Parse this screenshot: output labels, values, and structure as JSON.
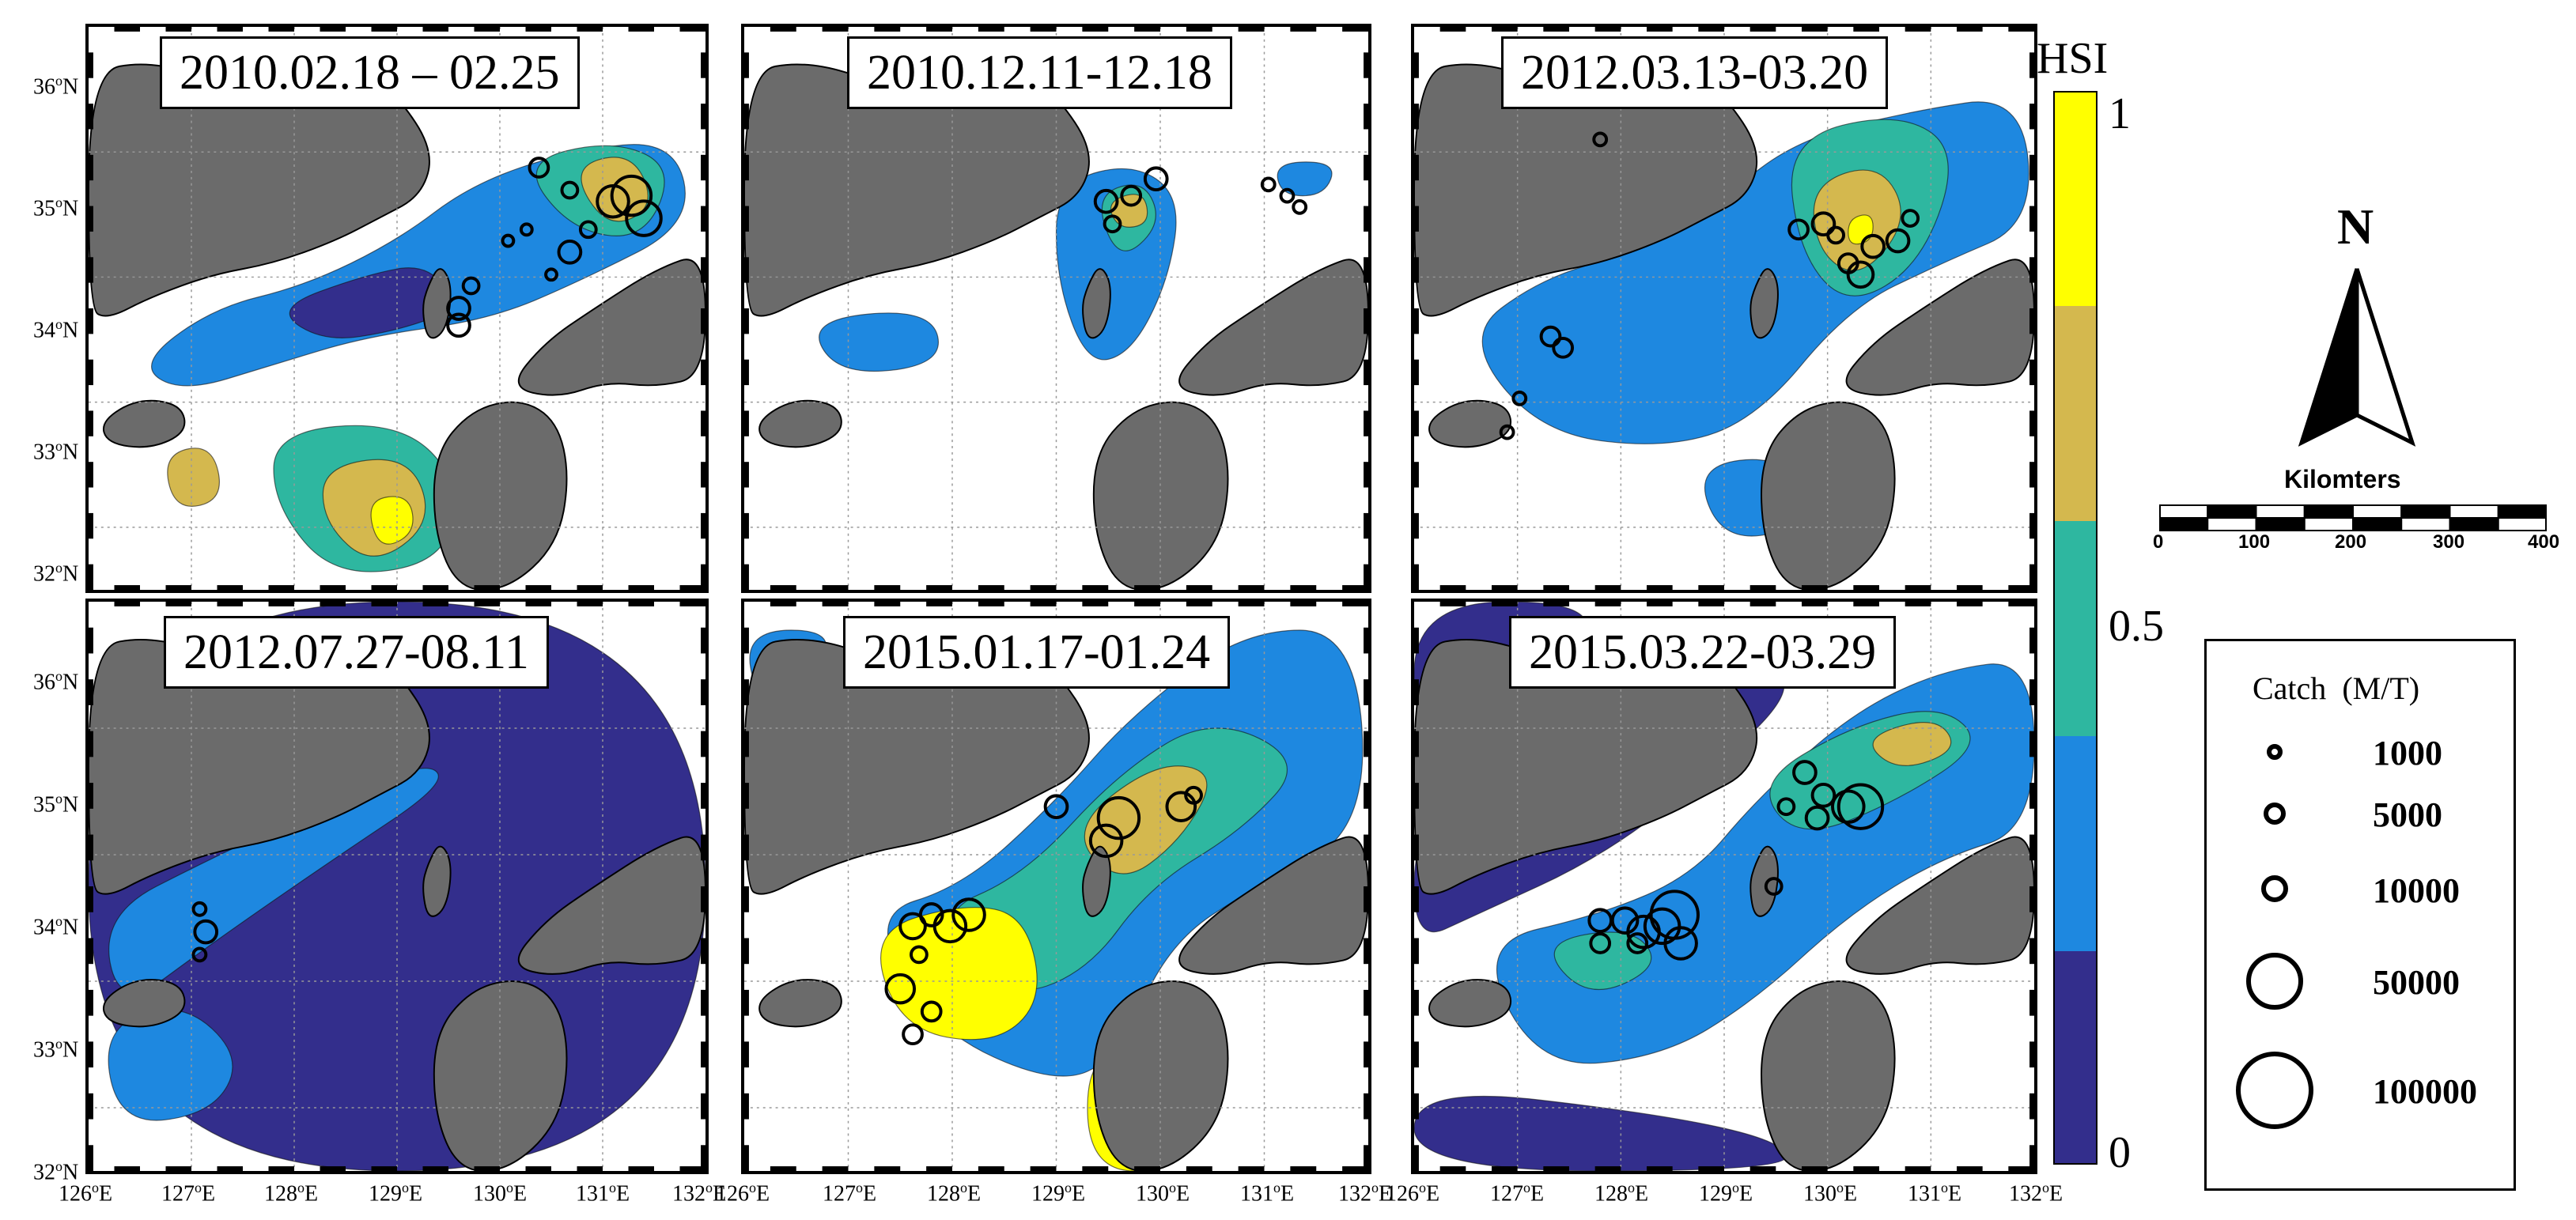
{
  "panels": [
    {
      "title": "2010.02.18 – 02.25"
    },
    {
      "title": "2010.12.11-12.18"
    },
    {
      "title": "2012.03.13-03.20"
    },
    {
      "title": "2012.07.27-08.11"
    },
    {
      "title": "2015.01.17-01.24"
    },
    {
      "title": "2015.03.22-03.29"
    }
  ],
  "lat_labels": [
    "36",
    "35",
    "34",
    "33",
    "32"
  ],
  "lon_labels": [
    "126",
    "127",
    "128",
    "129",
    "130",
    "131",
    "132"
  ],
  "lat_suffix": "N",
  "lon_suffix": "E",
  "degree_symbol": "o",
  "colorbar": {
    "title": "HSI",
    "tick_top": "1",
    "tick_mid": "0.5",
    "tick_bottom": "0",
    "bands": [
      "#ffff00",
      "#d4b84e",
      "#2eb7a0",
      "#1e88e0",
      "#332e8c"
    ]
  },
  "north_arrow": {
    "label": "N"
  },
  "scale_bar": {
    "title": "Kilomters",
    "ticks": [
      "0",
      "100",
      "200",
      "300",
      "400"
    ]
  },
  "catch_legend": {
    "title": "Catch",
    "unit": "(M/T)",
    "entries": [
      "1000",
      "5000",
      "10000",
      "50000",
      "100000"
    ]
  },
  "colors": {
    "land": "#6b6b6b",
    "grid": "#999999"
  }
}
